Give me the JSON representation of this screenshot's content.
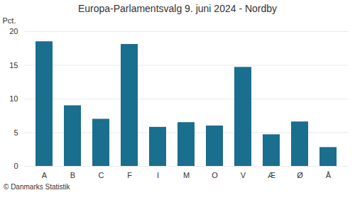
{
  "chart_data": {
    "type": "bar",
    "title": "Europa-Parlamentsvalg 9. juni 2024 - Nordby",
    "categories": [
      "A",
      "B",
      "C",
      "F",
      "I",
      "M",
      "O",
      "V",
      "Æ",
      "Ø",
      "Å"
    ],
    "values": [
      18.5,
      9.0,
      7.0,
      18.1,
      5.8,
      6.5,
      6.0,
      14.7,
      4.7,
      6.6,
      2.8
    ],
    "color": "#1a6e8e",
    "ylabel": "Pct.",
    "footer": "© Danmarks Statistik",
    "ylim": [
      0,
      20
    ],
    "yticks": [
      0,
      5,
      10,
      15,
      20
    ],
    "grid": true
  }
}
